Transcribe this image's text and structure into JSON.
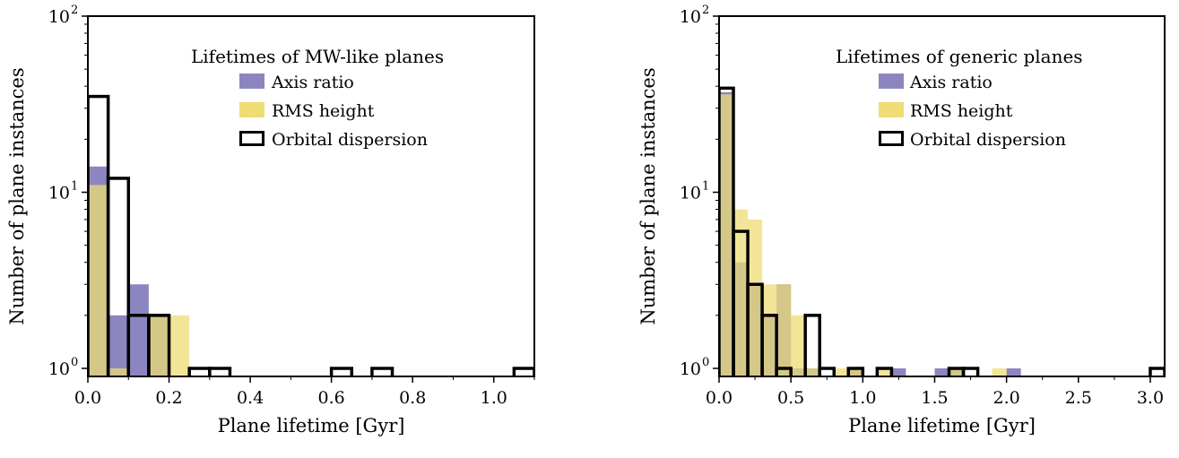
{
  "chart_data": [
    {
      "type": "histogram",
      "title": "",
      "xlabel": "Plane lifetime [Gyr]",
      "ylabel": "Number of plane instances",
      "xlim": [
        0.0,
        1.1
      ],
      "ylim": [
        0.9,
        100
      ],
      "yscale": "log",
      "grid": false,
      "legend_placement": "top-right",
      "legend_title": "Lifetimes of MW-like planes",
      "xticks": [
        0.0,
        0.2,
        0.4,
        0.6,
        0.8,
        1.0
      ],
      "xtick_labels": [
        "0.0",
        "0.2",
        "0.4",
        "0.6",
        "0.8",
        "1.0"
      ],
      "yticks": [
        {
          "value": 1,
          "base": "10",
          "exp": "0"
        },
        {
          "value": 10,
          "base": "10",
          "exp": "1"
        },
        {
          "value": 100,
          "base": "10",
          "exp": "2"
        }
      ],
      "bin_width": 0.05,
      "series": [
        {
          "name": "Axis ratio",
          "style": "filled",
          "color": "#8c86c0",
          "bin_starts": [
            0.0,
            0.05,
            0.1,
            0.15
          ],
          "counts": [
            14,
            2,
            3,
            2
          ]
        },
        {
          "name": "RMS height",
          "style": "filled",
          "color": "#eedc74",
          "bin_starts": [
            0.0,
            0.05,
            0.15,
            0.2
          ],
          "counts": [
            11,
            1,
            2,
            2
          ]
        },
        {
          "name": "Orbital dispersion",
          "style": "outline",
          "color": "#000000",
          "bin_starts": [
            0.0,
            0.05,
            0.1,
            0.15,
            0.25,
            0.3,
            0.6,
            0.7,
            1.05
          ],
          "counts": [
            35,
            12,
            2,
            2,
            1,
            1,
            1,
            1,
            1
          ]
        }
      ]
    },
    {
      "type": "histogram",
      "title": "",
      "xlabel": "Plane lifetime [Gyr]",
      "ylabel": "Number of plane instances",
      "xlim": [
        0.0,
        3.1
      ],
      "ylim": [
        0.9,
        100
      ],
      "yscale": "log",
      "grid": false,
      "legend_placement": "top-right",
      "legend_title": "Lifetimes of generic planes",
      "xticks": [
        0.0,
        0.5,
        1.0,
        1.5,
        2.0,
        2.5,
        3.0
      ],
      "xtick_labels": [
        "0.0",
        "0.5",
        "1.0",
        "1.5",
        "2.0",
        "2.5",
        "3.0"
      ],
      "yticks": [
        {
          "value": 1,
          "base": "10",
          "exp": "0"
        },
        {
          "value": 10,
          "base": "10",
          "exp": "1"
        },
        {
          "value": 100,
          "base": "10",
          "exp": "2"
        }
      ],
      "bin_width": 0.1,
      "series": [
        {
          "name": "Axis ratio",
          "style": "filled",
          "color": "#8c86c0",
          "bin_starts": [
            0.0,
            0.1,
            0.2,
            0.3,
            0.4,
            0.5,
            0.6,
            0.9,
            1.2,
            1.5,
            1.6,
            2.0
          ],
          "counts": [
            37,
            4,
            3,
            2,
            3,
            1,
            1,
            1,
            1,
            1,
            1,
            1
          ]
        },
        {
          "name": "RMS height",
          "style": "filled",
          "color": "#eedc74",
          "bin_starts": [
            0.0,
            0.1,
            0.2,
            0.3,
            0.4,
            0.5,
            0.6,
            0.8,
            0.9,
            1.1,
            1.6,
            1.9
          ],
          "counts": [
            36,
            8,
            7,
            3,
            3,
            2,
            1,
            1,
            1,
            1,
            1,
            1
          ]
        },
        {
          "name": "Orbital dispersion",
          "style": "outline",
          "color": "#000000",
          "bin_starts": [
            0.0,
            0.1,
            0.2,
            0.3,
            0.4,
            0.6,
            0.7,
            0.9,
            1.1,
            1.6,
            1.7,
            3.0
          ],
          "counts": [
            39,
            6,
            3,
            2,
            1,
            2,
            1,
            1,
            1,
            1,
            1,
            1
          ]
        }
      ]
    }
  ]
}
